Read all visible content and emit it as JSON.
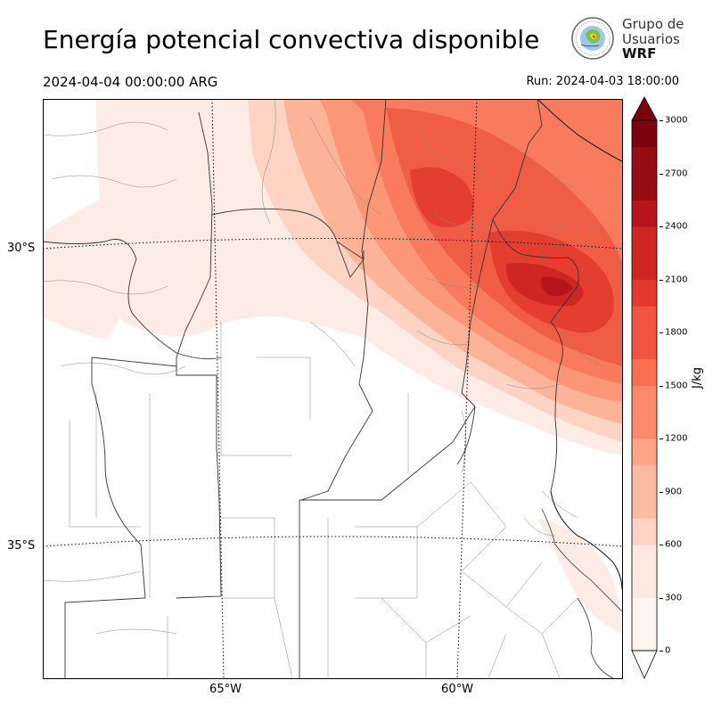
{
  "header": {
    "title": "Energía potencial convectiva disponible",
    "valid_time": "2024-04-04 00:00:00 ARG",
    "run_time": "Run: 2024-04-03 18:00:00"
  },
  "logo": {
    "line1": "Grupo de",
    "line2": "Usuarios",
    "line3": "WRF",
    "icon": "globe-emblem-icon"
  },
  "map": {
    "variable": "CAPE",
    "lat_labels": [
      "30°S",
      "35°S"
    ],
    "lon_labels": [
      "65°W",
      "60°W"
    ],
    "gridlines": "dotted",
    "background": "#ffffff"
  },
  "colorbar": {
    "units": "J/kg",
    "ticks": [
      "0",
      "300",
      "600",
      "900",
      "1200",
      "1500",
      "1800",
      "2100",
      "2400",
      "2700",
      "3000"
    ],
    "levels": [
      0,
      150,
      300,
      450,
      600,
      750,
      900,
      1050,
      1200,
      1350,
      1500,
      1650,
      1800,
      1950,
      2100,
      2250,
      2400,
      2550,
      2700,
      2850,
      3000
    ],
    "colors": [
      "#fff5f0",
      "#fee8e0",
      "#fdd4c4",
      "#fcbba1",
      "#fca486",
      "#fc8a6a",
      "#f9704f",
      "#f25440",
      "#e43a2d",
      "#cf2523",
      "#b7151b",
      "#980c13",
      "#7a0510"
    ],
    "extend": "both"
  }
}
